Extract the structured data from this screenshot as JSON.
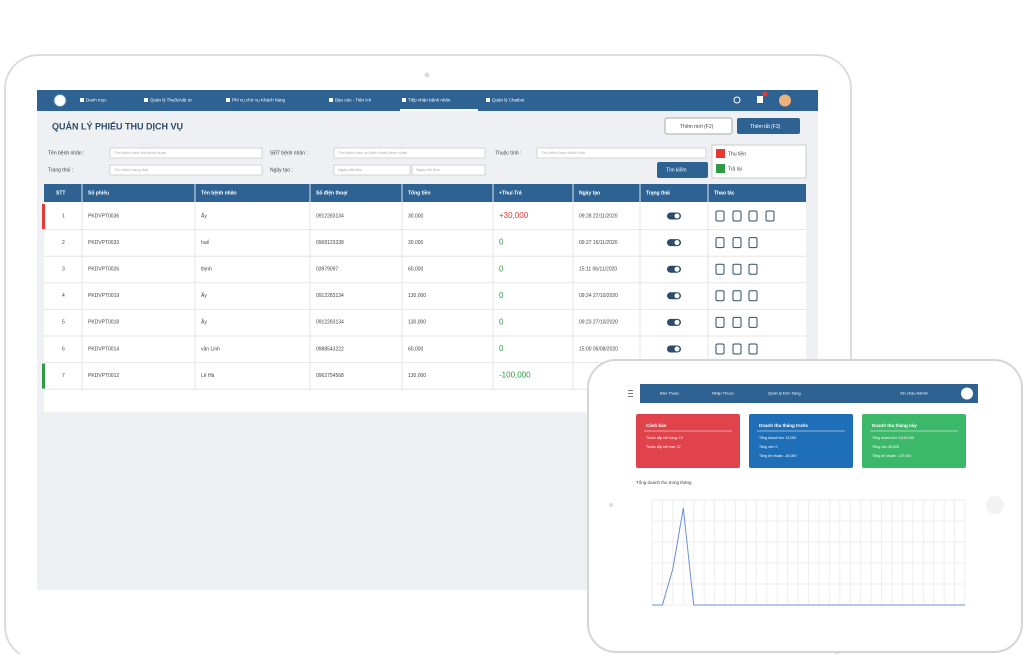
{
  "laptop": {
    "nav": [
      "Danh mục",
      "Quản lý Thuốc/vật tư",
      "Phí vụ chờ vụ Khách hàng",
      "Báo cáo - Tiện ích",
      "Tiếp nhận bệnh nhân",
      "Quản lý Chatbot"
    ],
    "title": "QUẢN LÝ PHIẾU THU DỊCH VỤ",
    "buttons": [
      "Thêm mới (F2)",
      "Thêm tất (F3)"
    ],
    "filters": [
      {
        "label": "Tên bệnh nhân :",
        "placeholder": "Tìm kiếm theo tên bệnh nhân"
      },
      {
        "label": "SĐT bệnh nhân :",
        "placeholder": "Tìm kiếm theo số điện thoại bệnh nhân"
      },
      {
        "label": "Thuộc tính :",
        "placeholder": "Tìm kiếm theo thuộc tính"
      },
      {
        "label": "Trạng thái :",
        "placeholder": "Tìm kiếm trạng thái"
      },
      {
        "label": "Ngày tạo :",
        "placeholder": "Ngày bắt đầu"
      },
      {
        "label": "",
        "placeholder": "Ngày kết thúc"
      }
    ],
    "search_button": "Tìm kiếm",
    "legend": [
      "Thu tiền",
      "Trả lại"
    ],
    "table": {
      "headers": [
        "STT",
        "Số phiếu",
        "Tên bệnh nhân",
        "Số điện thoại",
        "Tổng tiền",
        "+Thu/-Trả",
        "Ngày tạo",
        "Trạng thái",
        "Thao tác"
      ],
      "rows": [
        [
          "1",
          "PKDVPT0036",
          "Ấy",
          "0912283134",
          "30,000",
          "+30,000",
          "09:28 22/11/2020"
        ],
        [
          "2",
          "PKDVPT0033",
          "huế",
          "0968123338",
          "30,000",
          "0",
          "09:27 16/11/2020"
        ],
        [
          "3",
          "PKDVPT0026",
          "thịnh",
          "03979097",
          "60,000",
          "0",
          "15:11 06/11/2020"
        ],
        [
          "4",
          "PKDVPT0019",
          "Ấy",
          "0912283134",
          "130,000",
          "0",
          "09:24 27/10/2020"
        ],
        [
          "5",
          "PKDVPT0018",
          "Ấy",
          "0912283134",
          "130,000",
          "0",
          "09:23 27/10/2020"
        ],
        [
          "6",
          "PKDVPT0014",
          "văn Linh",
          "0988543222",
          "60,000",
          "0",
          "15:00 05/08/2020"
        ],
        [
          "7",
          "PKDVPT0012",
          "Lê Hà",
          "0962754568",
          "130,000",
          "-100,000",
          ""
        ]
      ]
    }
  },
  "tablet": {
    "nav": [
      "Bán Thuốc",
      "Nhập Thuốc",
      "Quản lý Đơn hàng"
    ],
    "greeting": "Xin chào Admin",
    "cards": [
      {
        "title": "Cảnh báo",
        "lines": [
          "Thuốc sắp hết hàng: 10",
          "Thuốc sắp hết hạn: 37"
        ]
      },
      {
        "title": "Doanh thu tháng trước",
        "lines": [
          "Tổng doanh thu: 12,000",
          "Tổng vốn: 0",
          "Tổng lợi nhuận: -40,000"
        ]
      },
      {
        "title": "Doanh thu tháng này",
        "lines": [
          "Tổng doanh thu: 3,610,000",
          "Tổng vốn: 80,000",
          "Tổng lợi nhuận: -137,000"
        ]
      }
    ],
    "chart": {
      "title": "Tổng doanh thu trong tháng",
      "values": [
        0,
        0,
        45000,
        120000,
        0,
        0,
        0,
        0,
        0,
        0,
        0,
        0,
        0,
        0,
        0,
        0,
        0,
        0,
        0,
        0,
        0,
        0,
        0,
        0,
        0,
        0,
        0,
        0,
        0,
        0,
        0
      ]
    }
  }
}
